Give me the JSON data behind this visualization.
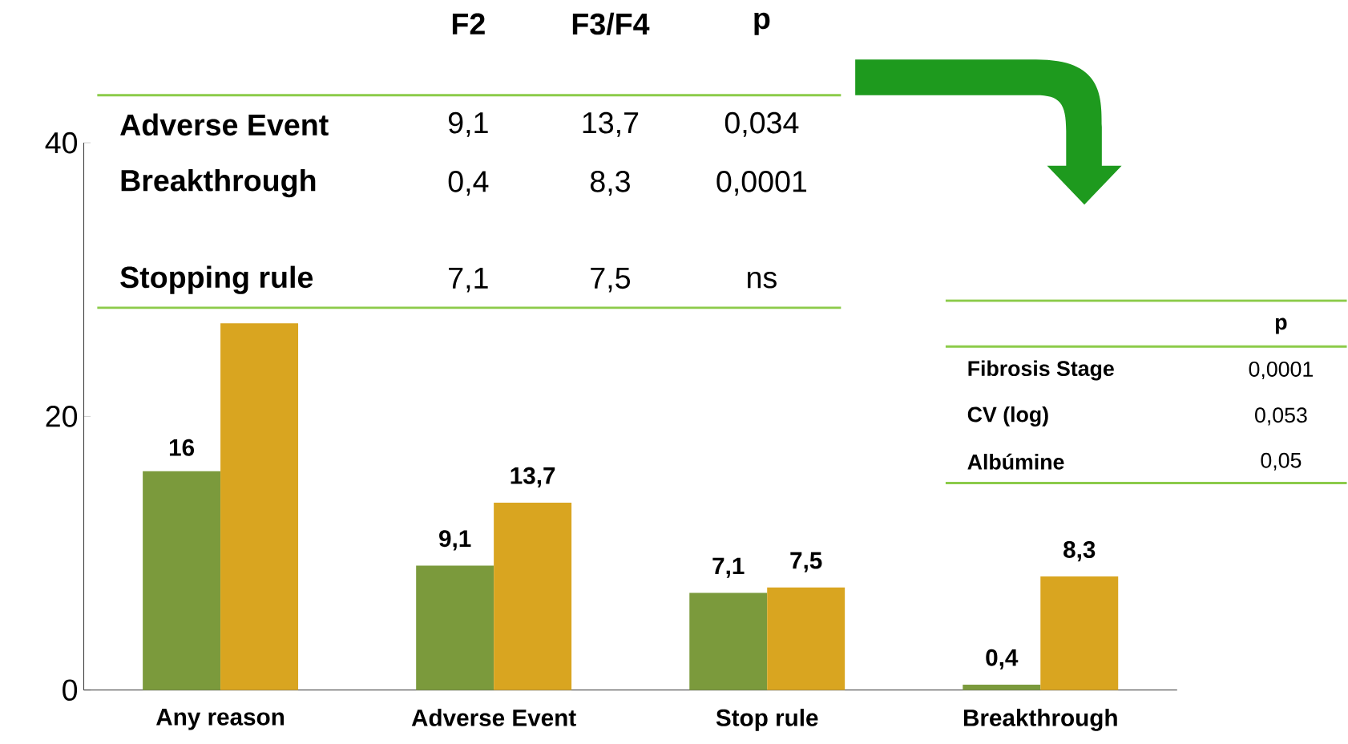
{
  "chart_data": {
    "type": "bar",
    "categories": [
      "Any reason",
      "Adverse Event",
      "Stop rule",
      "Breakthrough"
    ],
    "series": [
      {
        "color": "#7b9a3c",
        "values": [
          16,
          9.1,
          7.1,
          0.4
        ],
        "value_labels": [
          "16",
          "9,1",
          "7,1",
          "0,4"
        ]
      },
      {
        "color": "#d9a520",
        "values": [
          26.8,
          13.7,
          7.5,
          8.3
        ],
        "value_labels": [
          null,
          "13,7",
          "7,5",
          "8,3"
        ]
      }
    ],
    "ylim": [
      0,
      40
    ],
    "yticks": [
      0,
      20,
      40
    ],
    "grid": false,
    "annotations": [
      "F2",
      "F3/F4",
      "p",
      "Adverse Event",
      "9,1",
      "13,7",
      "0,034",
      "Breakthrough",
      "0,4",
      "8,3",
      "0,0001",
      "Stopping rule",
      "7,1",
      "7,5",
      "ns",
      "p",
      "Fibrosis Stage",
      "0,0001",
      "CV (log)",
      "0,053",
      "Albúmine",
      "0,05"
    ]
  }
}
